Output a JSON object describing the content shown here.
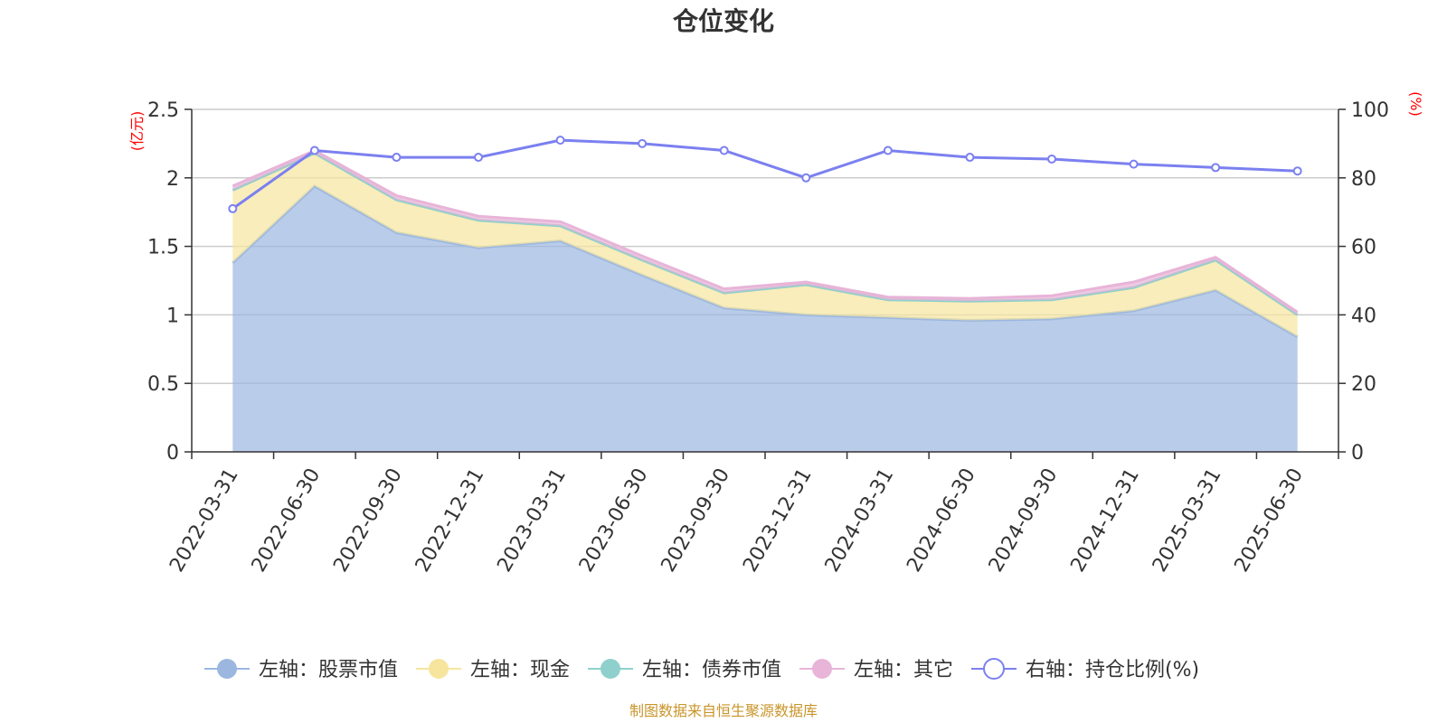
{
  "chart_data": {
    "type": "area",
    "title": "仓位变化",
    "left_unit": "(亿元)",
    "right_unit": "(%)",
    "categories": [
      "2022-03-31",
      "2022-06-30",
      "2022-09-30",
      "2022-12-31",
      "2023-03-31",
      "2023-06-30",
      "2023-09-30",
      "2023-12-31",
      "2024-03-31",
      "2024-06-30",
      "2024-09-30",
      "2024-12-31",
      "2025-03-31",
      "2025-06-30"
    ],
    "left_axis": {
      "min": 0,
      "max": 2.5,
      "ticks": [
        "0",
        "0.5",
        "1",
        "1.5",
        "2",
        "2.5"
      ],
      "tick_values": [
        0,
        0.5,
        1,
        1.5,
        2,
        2.5
      ]
    },
    "right_axis": {
      "min": 0,
      "max": 100,
      "ticks": [
        "0",
        "20",
        "40",
        "60",
        "80",
        "100"
      ],
      "tick_values": [
        0,
        20,
        40,
        60,
        80,
        100
      ]
    },
    "grid": true,
    "legend_position": "bottom",
    "series": [
      {
        "name": "左轴：股票市值",
        "axis": "left",
        "kind": "stacked-area",
        "color": "#9bb7e0",
        "values": [
          1.38,
          1.94,
          1.6,
          1.49,
          1.54,
          1.29,
          1.05,
          1.0,
          0.98,
          0.96,
          0.97,
          1.03,
          1.18,
          0.84
        ]
      },
      {
        "name": "左轴：现金",
        "axis": "left",
        "kind": "stacked-area",
        "color": "#f7e59e",
        "values": [
          0.53,
          0.24,
          0.24,
          0.2,
          0.11,
          0.11,
          0.11,
          0.22,
          0.13,
          0.14,
          0.14,
          0.17,
          0.22,
          0.16
        ]
      },
      {
        "name": "左轴：债券市值",
        "axis": "left",
        "kind": "stacked-area",
        "color": "#8fd0cc",
        "values": [
          0,
          0,
          0,
          0,
          0,
          0,
          0,
          0,
          0,
          0,
          0,
          0,
          0,
          0
        ]
      },
      {
        "name": "左轴：其它",
        "axis": "left",
        "kind": "stacked-area",
        "color": "#e8b4d8",
        "values": [
          0.03,
          0.02,
          0.03,
          0.03,
          0.03,
          0.03,
          0.03,
          0.02,
          0.02,
          0.02,
          0.03,
          0.04,
          0.02,
          0.02
        ]
      },
      {
        "name": "右轴：持仓比例(%)",
        "axis": "right",
        "kind": "line",
        "color": "#7b80f0",
        "values": [
          71,
          88,
          86,
          86,
          91,
          90,
          88,
          80,
          88,
          86,
          85.5,
          84,
          83,
          82
        ]
      }
    ]
  },
  "footer": {
    "source": "制图数据来自恒生聚源数据库"
  }
}
